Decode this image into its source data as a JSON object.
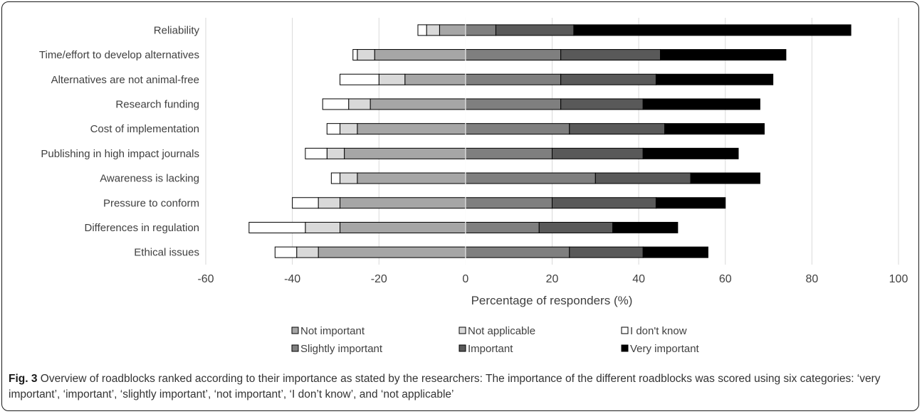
{
  "chart_data": {
    "type": "bar",
    "orientation": "horizontal",
    "stacked": "diverging",
    "categories": [
      "Reliability",
      "Time/effort to develop alternatives",
      "Alternatives are not animal-free",
      "Research funding",
      "Cost of implementation",
      "Publishing in high impact journals",
      "Awareness is lacking",
      "Pressure to conform",
      "Differences in regulation",
      "Ethical issues"
    ],
    "negative_series": [
      {
        "name": "Not important",
        "color": "#a6a6a6",
        "values": [
          6,
          21,
          14,
          22,
          25,
          28,
          25,
          29,
          29,
          34
        ]
      },
      {
        "name": "Not applicable",
        "color": "#d9d9d9",
        "values": [
          3,
          4,
          6,
          5,
          4,
          4,
          4,
          5,
          8,
          5
        ]
      },
      {
        "name": "I don't know",
        "color": "#ffffff",
        "values": [
          2,
          1,
          9,
          6,
          3,
          5,
          2,
          6,
          13,
          5
        ]
      }
    ],
    "positive_series": [
      {
        "name": "Slightly important",
        "color": "#7f7f7f",
        "values": [
          7,
          22,
          22,
          22,
          24,
          20,
          30,
          20,
          17,
          24
        ]
      },
      {
        "name": "Important",
        "color": "#595959",
        "values": [
          18,
          23,
          22,
          19,
          22,
          21,
          22,
          24,
          17,
          17
        ]
      },
      {
        "name": "Very important",
        "color": "#000000",
        "values": [
          64,
          29,
          27,
          27,
          23,
          22,
          16,
          16,
          15,
          15
        ]
      }
    ],
    "legend_order": [
      "Not important",
      "Not applicable",
      "I don't know",
      "Slightly important",
      "Important",
      "Very important"
    ],
    "xlim": [
      -60,
      100
    ],
    "xticks": [
      -60,
      -40,
      -20,
      0,
      20,
      40,
      60,
      80,
      100
    ],
    "xlabel": "Percentage of responders (%)",
    "ylabel": "",
    "grid": "vertical",
    "legend_position": "bottom"
  },
  "caption": {
    "figure_number": "Fig. 3",
    "text": "Overview of roadblocks ranked according to their importance as stated by the researchers: The importance of the different roadblocks was scored using six categories: ‘very important’, ‘important’, ‘slightly important’, ‘not important’, ‘I don’t know’, and ‘not applicable’"
  }
}
